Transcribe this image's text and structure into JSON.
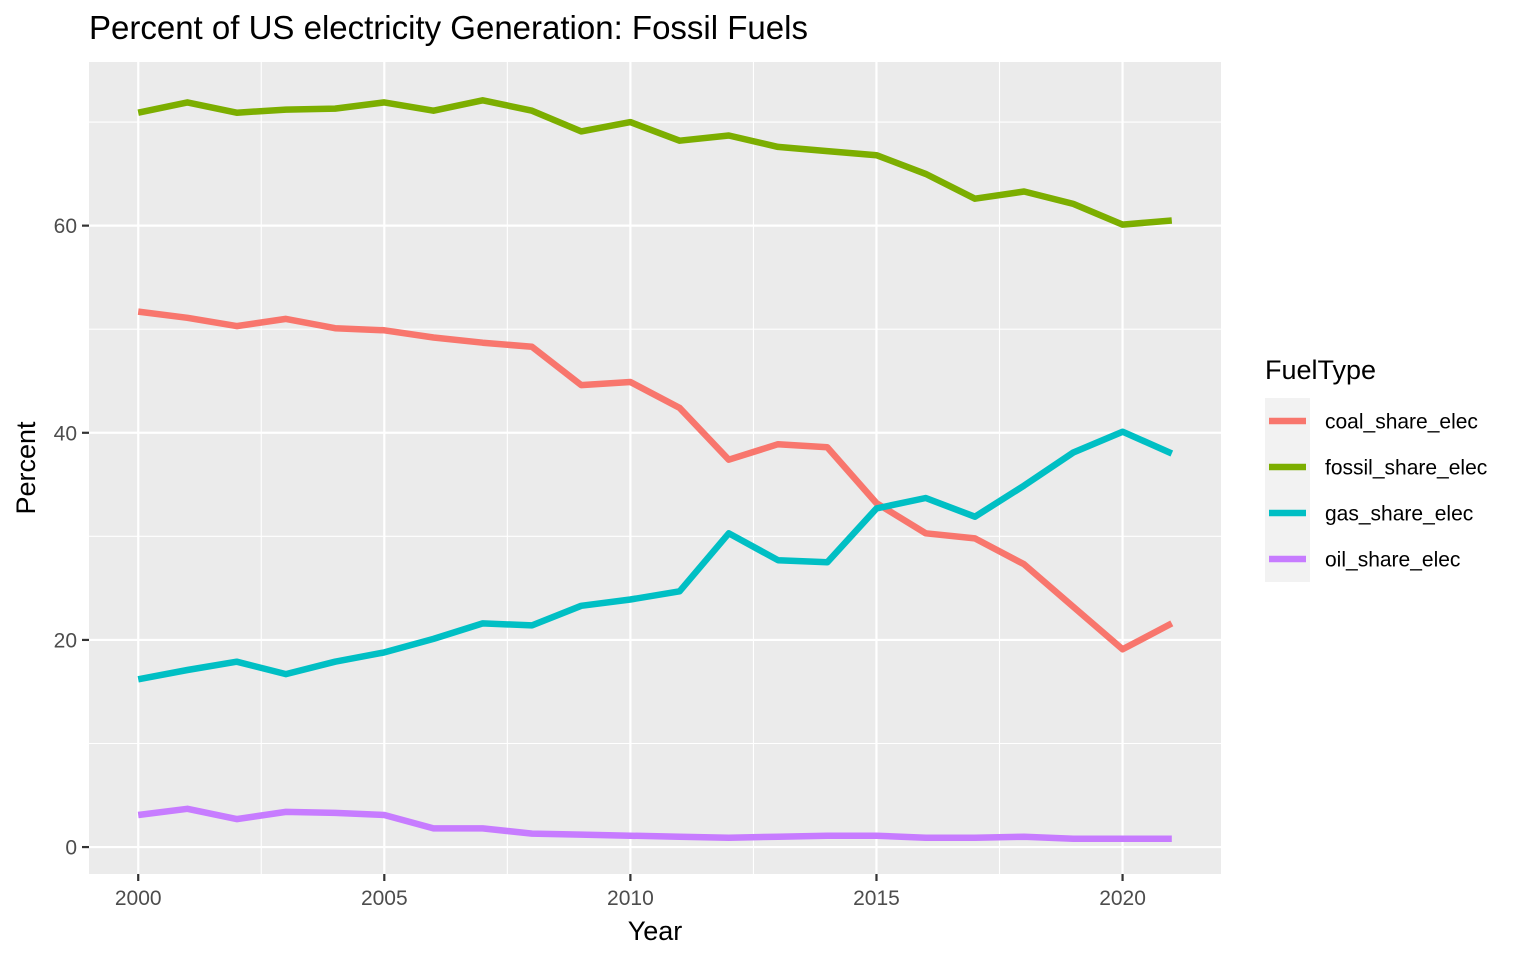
{
  "chart_data": {
    "type": "line",
    "title": "Percent of US electricity Generation: Fossil Fuels",
    "xlabel": "Year",
    "ylabel": "Percent",
    "xlim": [
      1999,
      2022
    ],
    "ylim": [
      -2.6,
      75.8
    ],
    "x_ticks": [
      2000,
      2005,
      2010,
      2015,
      2020
    ],
    "y_ticks": [
      0,
      20,
      40,
      60
    ],
    "grid": true,
    "legend": {
      "title": "FuelType",
      "position": "right"
    },
    "x": [
      2000,
      2001,
      2002,
      2003,
      2004,
      2005,
      2006,
      2007,
      2008,
      2009,
      2010,
      2011,
      2012,
      2013,
      2014,
      2015,
      2016,
      2017,
      2018,
      2019,
      2020,
      2021
    ],
    "series": [
      {
        "name": "coal_share_elec",
        "color": "#F8766D",
        "values": [
          51.7,
          51.1,
          50.3,
          51.0,
          50.1,
          49.9,
          49.2,
          48.7,
          48.3,
          44.6,
          44.9,
          42.4,
          37.4,
          38.9,
          38.6,
          33.2,
          30.3,
          29.8,
          27.3,
          23.2,
          19.1,
          21.6
        ]
      },
      {
        "name": "fossil_share_elec",
        "color": "#7CAE00",
        "values": [
          70.9,
          71.9,
          70.9,
          71.2,
          71.3,
          71.9,
          71.1,
          72.1,
          71.1,
          69.1,
          70.0,
          68.2,
          68.7,
          67.6,
          67.2,
          66.8,
          65.0,
          62.6,
          63.3,
          62.1,
          60.1,
          60.5
        ]
      },
      {
        "name": "gas_share_elec",
        "color": "#00BFC4",
        "values": [
          16.2,
          17.1,
          17.9,
          16.7,
          17.9,
          18.8,
          20.1,
          21.6,
          21.4,
          23.3,
          23.9,
          24.7,
          30.3,
          27.7,
          27.5,
          32.7,
          33.7,
          31.9,
          34.9,
          38.1,
          40.1,
          38.0
        ]
      },
      {
        "name": "oil_share_elec",
        "color": "#C77CFF",
        "values": [
          3.1,
          3.7,
          2.7,
          3.4,
          3.3,
          3.1,
          1.8,
          1.8,
          1.3,
          1.2,
          1.1,
          1.0,
          0.9,
          1.0,
          1.1,
          1.1,
          0.9,
          0.9,
          1.0,
          0.8,
          0.8,
          0.8
        ]
      }
    ]
  }
}
